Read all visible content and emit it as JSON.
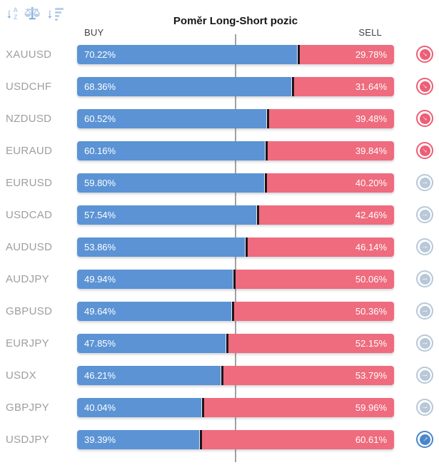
{
  "header": {
    "title": "Poměr Long-Short pozic",
    "buy_label": "BUY",
    "sell_label": "SELL"
  },
  "toolbar": {
    "icons": [
      "sort-alphabetical-icon",
      "balance-scale-icon",
      "sort-amount-icon"
    ],
    "arrow_glyph": "↓",
    "letter_a": "A",
    "letter_z": "Z"
  },
  "icons": {
    "trend_arrow_glyph": "→"
  },
  "colors": {
    "buy_bar": "#5b93d5",
    "sell_bar": "#ef6b7e",
    "divider": "#1d151c",
    "trend_down": "#ed5f75",
    "trend_neutral": "#b8c8d8",
    "trend_up": "#4a86ca",
    "label_text": "#9e9e9e",
    "center_line": "#a1a1a1",
    "toolbar_arrow": "#7aa3d6",
    "toolbar_light": "#b9cfe7"
  },
  "rows": [
    {
      "pair": "XAUUSD",
      "buy_pct": "70.22%",
      "sell_pct": "29.78%",
      "trend": "down"
    },
    {
      "pair": "USDCHF",
      "buy_pct": "68.36%",
      "sell_pct": "31.64%",
      "trend": "down"
    },
    {
      "pair": "NZDUSD",
      "buy_pct": "60.52%",
      "sell_pct": "39.48%",
      "trend": "down"
    },
    {
      "pair": "EURAUD",
      "buy_pct": "60.16%",
      "sell_pct": "39.84%",
      "trend": "down"
    },
    {
      "pair": "EURUSD",
      "buy_pct": "59.80%",
      "sell_pct": "40.20%",
      "trend": "neutral"
    },
    {
      "pair": "USDCAD",
      "buy_pct": "57.54%",
      "sell_pct": "42.46%",
      "trend": "neutral"
    },
    {
      "pair": "AUDUSD",
      "buy_pct": "53.86%",
      "sell_pct": "46.14%",
      "trend": "neutral"
    },
    {
      "pair": "AUDJPY",
      "buy_pct": "49.94%",
      "sell_pct": "50.06%",
      "trend": "neutral"
    },
    {
      "pair": "GBPUSD",
      "buy_pct": "49.64%",
      "sell_pct": "50.36%",
      "trend": "neutral"
    },
    {
      "pair": "EURJPY",
      "buy_pct": "47.85%",
      "sell_pct": "52.15%",
      "trend": "neutral"
    },
    {
      "pair": "USDX",
      "buy_pct": "46.21%",
      "sell_pct": "53.79%",
      "trend": "neutral"
    },
    {
      "pair": "GBPJPY",
      "buy_pct": "40.04%",
      "sell_pct": "59.96%",
      "trend": "neutral"
    },
    {
      "pair": "USDJPY",
      "buy_pct": "39.39%",
      "sell_pct": "60.61%",
      "trend": "up"
    }
  ],
  "chart_data": {
    "type": "bar",
    "orientation": "horizontal-stacked",
    "title": "Poměr Long-Short pozic",
    "categories": [
      "XAUUSD",
      "USDCHF",
      "NZDUSD",
      "EURAUD",
      "EURUSD",
      "USDCAD",
      "AUDUSD",
      "AUDJPY",
      "GBPUSD",
      "EURJPY",
      "USDX",
      "GBPJPY",
      "USDJPY"
    ],
    "series": [
      {
        "name": "BUY",
        "color": "#5b93d5",
        "values": [
          70.22,
          68.36,
          60.52,
          60.16,
          59.8,
          57.54,
          53.86,
          49.94,
          49.64,
          47.85,
          46.21,
          40.04,
          39.39
        ]
      },
      {
        "name": "SELL",
        "color": "#ef6b7e",
        "values": [
          29.78,
          31.64,
          39.48,
          39.84,
          40.2,
          42.46,
          46.14,
          50.06,
          50.36,
          52.15,
          53.79,
          59.96,
          60.61
        ]
      }
    ],
    "xlim": [
      0,
      100
    ],
    "center_line_at": 50,
    "grid": false,
    "legend_position": "top (BUY left, SELL right)",
    "row_trend_icons": [
      "down",
      "down",
      "down",
      "down",
      "neutral",
      "neutral",
      "neutral",
      "neutral",
      "neutral",
      "neutral",
      "neutral",
      "neutral",
      "up"
    ]
  }
}
